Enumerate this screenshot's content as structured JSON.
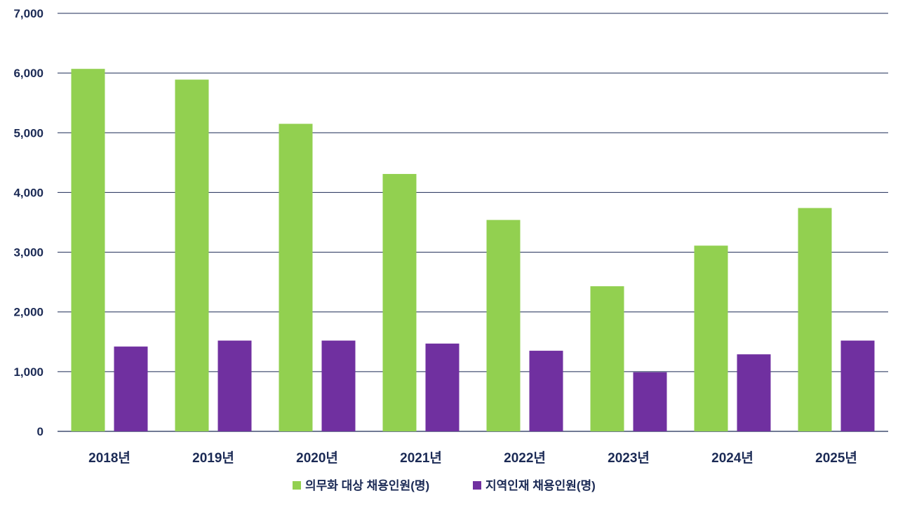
{
  "chart_data": {
    "type": "bar",
    "categories": [
      "2018년",
      "2019년",
      "2020년",
      "2021년",
      "2022년",
      "2023년",
      "2024년",
      "2025년"
    ],
    "series": [
      {
        "name": "의무화 대상 채용인원(명)",
        "color": "#92d050",
        "values": [
          6070,
          5890,
          5150,
          4310,
          3540,
          2430,
          3110,
          3740
        ]
      },
      {
        "name": "지역인재 채용인원(명)",
        "color": "#7030a0",
        "values": [
          1420,
          1520,
          1520,
          1470,
          1350,
          990,
          1290,
          1520
        ]
      }
    ],
    "ylim": [
      0,
      7000
    ],
    "yticks": [
      "0",
      "1,000",
      "2,000",
      "3,000",
      "4,000",
      "5,000",
      "6,000",
      "7,000"
    ],
    "grid": true,
    "legend": "bottom-center"
  }
}
